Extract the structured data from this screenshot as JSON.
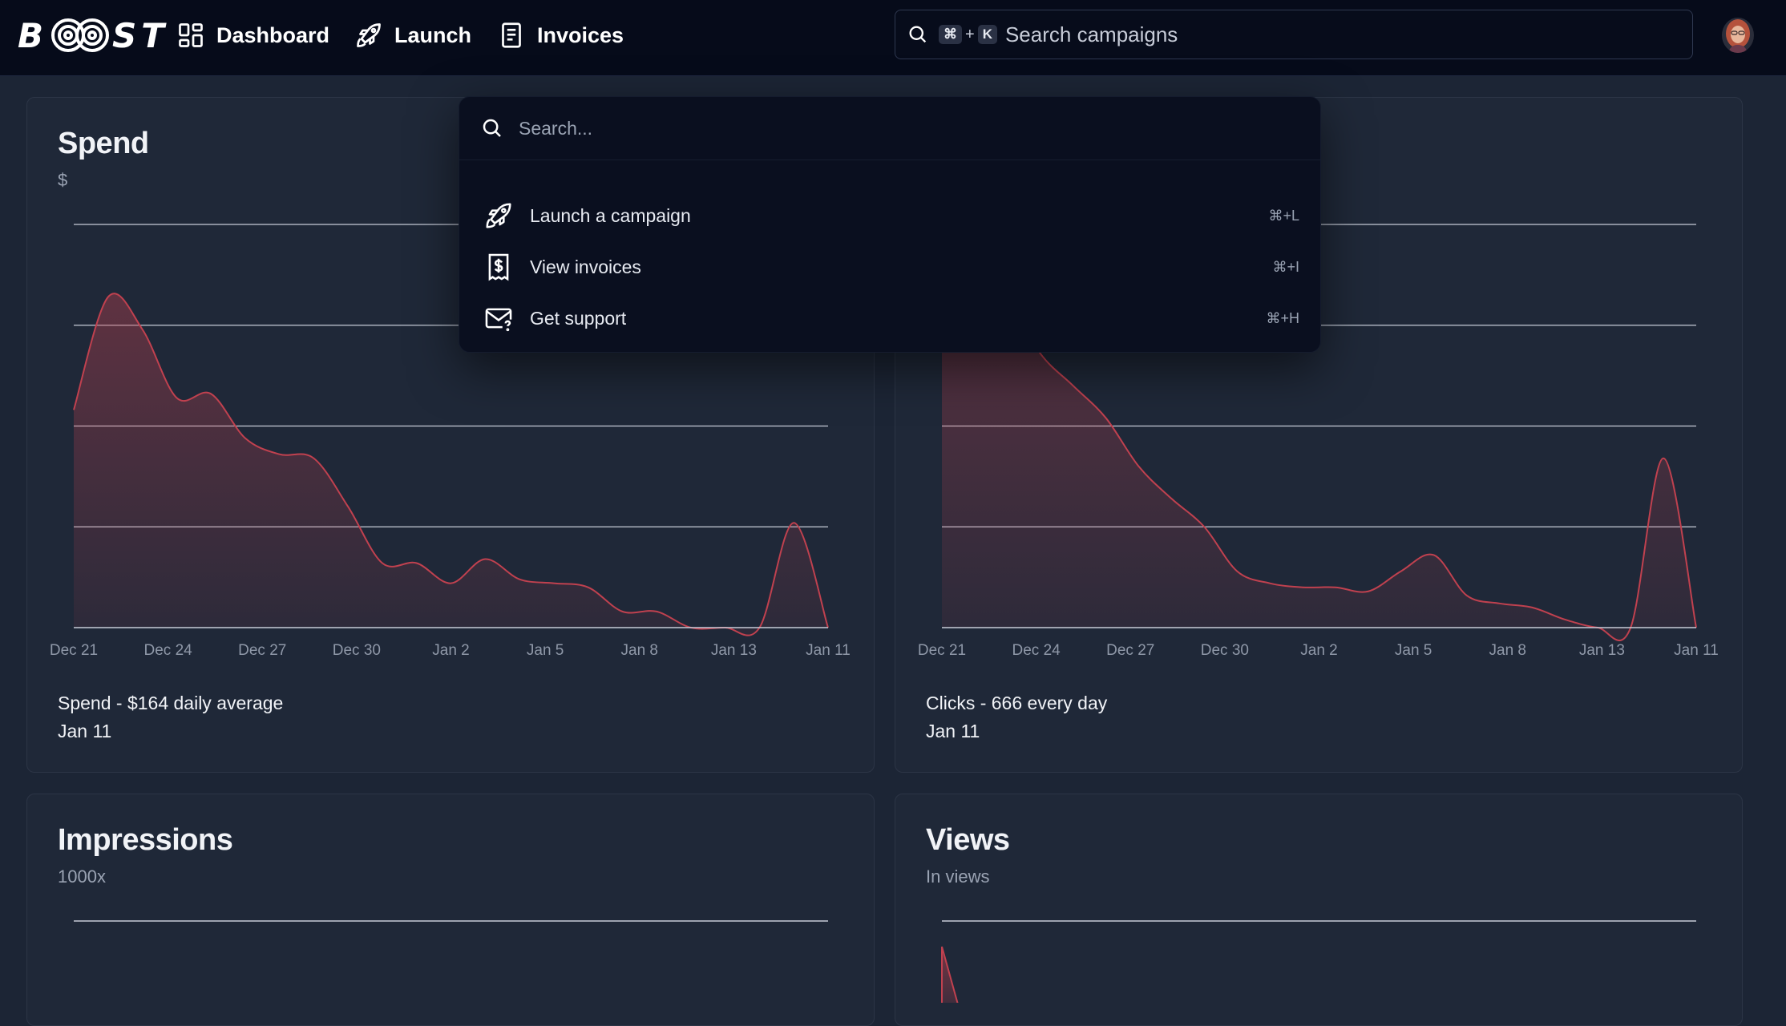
{
  "brand": {
    "logo_left": "B",
    "logo_right": "ST"
  },
  "nav": {
    "items": [
      {
        "label": "Dashboard",
        "icon": "dashboard-grid-icon"
      },
      {
        "label": "Launch",
        "icon": "rocket-icon"
      },
      {
        "label": "Invoices",
        "icon": "document-icon"
      }
    ]
  },
  "search": {
    "kbd_cmd": "⌘",
    "kbd_plus": "+",
    "kbd_key": "K",
    "placeholder": "Search campaigns"
  },
  "palette": {
    "placeholder": "Search...",
    "items": [
      {
        "label": "Launch a campaign",
        "shortcut": "⌘+L",
        "icon": "rocket-icon"
      },
      {
        "label": "View invoices",
        "shortcut": "⌘+I",
        "icon": "dollar-receipt-icon"
      },
      {
        "label": "Get support",
        "shortcut": "⌘+H",
        "icon": "mail-question-icon"
      }
    ]
  },
  "cards": {
    "spend": {
      "title": "Spend",
      "subtitle": "$",
      "caption": "Spend - $164 daily average",
      "date": "Jan 11"
    },
    "clicks": {
      "title": "",
      "subtitle": "",
      "caption": "Clicks - 666 every day",
      "date": "Jan 11"
    },
    "impressions": {
      "title": "Impressions",
      "subtitle": "1000x"
    },
    "views": {
      "title": "Views",
      "subtitle": "In views"
    }
  },
  "colors": {
    "accent": "#c0414f",
    "background": "#1c2535",
    "card": "#1f2838",
    "topbar": "#060b1a"
  },
  "chart_data": [
    {
      "type": "area",
      "x_tick_labels": [
        "Dec 21",
        "Dec 24",
        "Dec 27",
        "Dec 30",
        "Jan 2",
        "Jan 5",
        "Jan 8",
        "Jan 13",
        "Jan 11"
      ],
      "values": [
        0.54,
        0.82,
        0.74,
        0.57,
        0.58,
        0.47,
        0.43,
        0.42,
        0.3,
        0.16,
        0.16,
        0.11,
        0.17,
        0.12,
        0.11,
        0.1,
        0.04,
        0.04,
        0.0,
        0.0,
        0.0,
        0.26,
        0.0
      ],
      "ylim": [
        0,
        1
      ],
      "grid": true
    },
    {
      "type": "area",
      "x_tick_labels": [
        "Dec 21",
        "Dec 24",
        "Dec 27",
        "Dec 30",
        "Jan 2",
        "Jan 5",
        "Jan 8",
        "Jan 13",
        "Jan 11"
      ],
      "values": [
        0.95,
        0.9,
        0.82,
        0.68,
        0.6,
        0.52,
        0.4,
        0.32,
        0.25,
        0.14,
        0.11,
        0.1,
        0.1,
        0.09,
        0.14,
        0.18,
        0.08,
        0.06,
        0.05,
        0.02,
        0.0,
        0.0,
        0.42,
        0.0
      ],
      "ylim": [
        0,
        1
      ],
      "grid": true
    }
  ]
}
